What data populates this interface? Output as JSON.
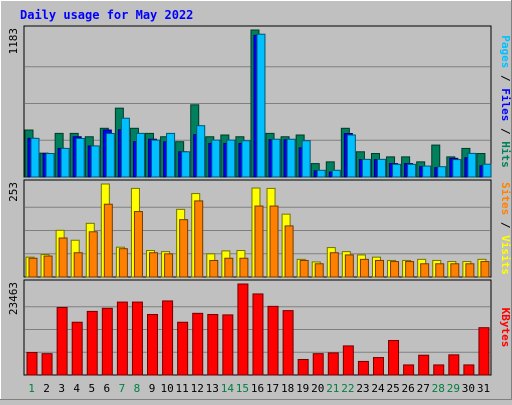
{
  "chart_data": [
    {
      "type": "bar",
      "title": "Daily usage for May 2022",
      "y_max_label": "1183",
      "categories": [
        "1",
        "2",
        "3",
        "4",
        "5",
        "6",
        "7",
        "8",
        "9",
        "10",
        "11",
        "12",
        "13",
        "14",
        "15",
        "16",
        "17",
        "18",
        "19",
        "20",
        "21",
        "22",
        "23",
        "24",
        "25",
        "26",
        "27",
        "28",
        "29",
        "30",
        "31"
      ],
      "ylim": [
        0,
        1183
      ],
      "legend": [
        "Pages",
        "Files",
        "Hits"
      ],
      "series": [
        {
          "name": "Hits",
          "color": "#00805c",
          "values": [
            378,
            192,
            351,
            351,
            324,
            392,
            554,
            392,
            351,
            324,
            284,
            581,
            324,
            338,
            324,
            1183,
            351,
            324,
            338,
            108,
            122,
            392,
            203,
            189,
            162,
            162,
            122,
            257,
            162,
            230,
            189
          ]
        },
        {
          "name": "Files",
          "color": "#0000ff",
          "values": [
            311,
            189,
            230,
            324,
            250,
            378,
            380,
            284,
            304,
            283,
            203,
            341,
            270,
            270,
            270,
            1140,
            300,
            300,
            235,
            50,
            40,
            350,
            140,
            140,
            108,
            108,
            84,
            75,
            150,
            155,
            90
          ]
        },
        {
          "name": "Pages",
          "color": "#00c0ff",
          "values": [
            311,
            189,
            230,
            310,
            250,
            350,
            473,
            351,
            297,
            351,
            203,
            413,
            297,
            297,
            292,
            1149,
            304,
            304,
            292,
            54,
            54,
            338,
            142,
            142,
            102,
            102,
            88,
            83,
            140,
            190,
            103
          ]
        }
      ]
    },
    {
      "type": "bar",
      "y_max_label": "253",
      "categories": [
        "1",
        "2",
        "3",
        "4",
        "5",
        "6",
        "7",
        "8",
        "9",
        "10",
        "11",
        "12",
        "13",
        "14",
        "15",
        "16",
        "17",
        "18",
        "19",
        "20",
        "21",
        "22",
        "23",
        "24",
        "25",
        "26",
        "27",
        "28",
        "29",
        "30",
        "31"
      ],
      "ylim": [
        0,
        253
      ],
      "legend": [
        "Sites",
        "Visits"
      ],
      "series": [
        {
          "name": "Visits",
          "color": "#ffff00",
          "values": [
            54,
            61,
            127,
            100,
            146,
            253,
            81,
            241,
            72,
            69,
            184,
            227,
            63,
            71,
            72,
            242,
            241,
            171,
            48,
            41,
            80,
            69,
            60,
            54,
            45,
            45,
            48,
            45,
            42,
            42,
            48
          ]
        },
        {
          "name": "Sites",
          "color": "#ff8000",
          "values": [
            51,
            57,
            106,
            66,
            123,
            198,
            77,
            178,
            66,
            63,
            156,
            207,
            45,
            51,
            51,
            193,
            193,
            139,
            45,
            36,
            66,
            60,
            48,
            45,
            42,
            42,
            36,
            36,
            36,
            36,
            42
          ]
        }
      ]
    },
    {
      "type": "bar",
      "y_max_label": "23463",
      "categories": [
        "1",
        "2",
        "3",
        "4",
        "5",
        "6",
        "7",
        "8",
        "9",
        "10",
        "11",
        "12",
        "13",
        "14",
        "15",
        "16",
        "17",
        "18",
        "19",
        "20",
        "21",
        "22",
        "23",
        "24",
        "25",
        "26",
        "27",
        "28",
        "29",
        "30",
        "31"
      ],
      "ylim": [
        0,
        23463
      ],
      "legend": [
        "KBytes"
      ],
      "series": [
        {
          "name": "KBytes",
          "color": "#ff0000",
          "values": [
            5800,
            5500,
            17400,
            13600,
            16400,
            17200,
            18800,
            18800,
            15600,
            19100,
            13600,
            15900,
            15600,
            15500,
            23463,
            20900,
            17700,
            16600,
            4000,
            5500,
            5700,
            7500,
            3500,
            4500,
            8900,
            2600,
            5100,
            2600,
            5200,
            2600,
            12200
          ]
        }
      ]
    }
  ],
  "x_axis": {
    "labels": [
      "1",
      "2",
      "3",
      "4",
      "5",
      "6",
      "7",
      "8",
      "9",
      "10",
      "11",
      "12",
      "13",
      "14",
      "15",
      "16",
      "17",
      "18",
      "19",
      "20",
      "21",
      "22",
      "23",
      "24",
      "25",
      "26",
      "27",
      "28",
      "29",
      "30",
      "31"
    ],
    "weekend_days": [
      1,
      7,
      8,
      14,
      15,
      21,
      22,
      28,
      29
    ],
    "weekday_color": "#000000",
    "weekend_color": "#008040"
  },
  "colors": {
    "background": "#c0c0c0",
    "title": "#0000ff",
    "grid": "#808080",
    "sep": "#000000"
  }
}
